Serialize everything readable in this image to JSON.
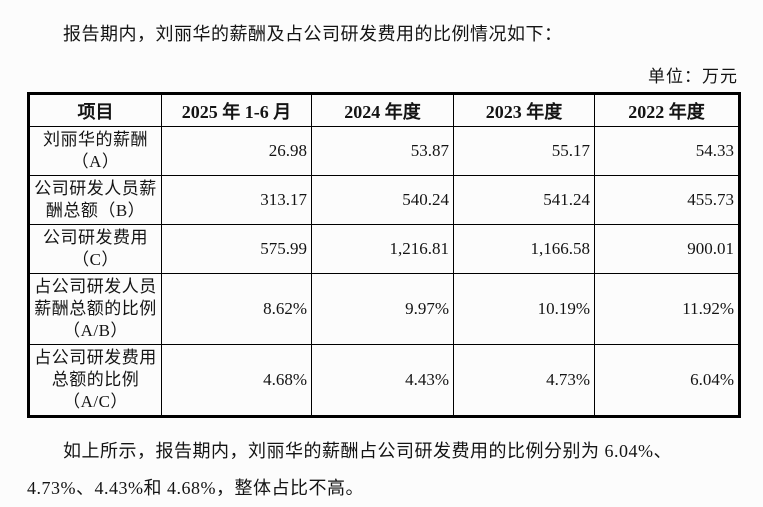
{
  "page": {
    "intro": "报告期内，刘丽华的薪酬及占公司研发费用的比例情况如下：",
    "unit_label": "单位：万元",
    "footer": "如上所示，报告期内，刘丽华的薪酬占公司研发费用的比例分别为 6.04%、4.73%、4.43%和 4.68%，整体占比不高。"
  },
  "table": {
    "headers": [
      "项目",
      "2025 年 1-6 月",
      "2024 年度",
      "2023 年度",
      "2022 年度"
    ],
    "rows": [
      {
        "label": "刘丽华的薪酬\n（A）",
        "values": [
          "26.98",
          "53.87",
          "55.17",
          "54.33"
        ]
      },
      {
        "label": "公司研发人员薪\n酬总额（B）",
        "values": [
          "313.17",
          "540.24",
          "541.24",
          "455.73"
        ]
      },
      {
        "label": "公司研发费用\n（C）",
        "values": [
          "575.99",
          "1,216.81",
          "1,166.58",
          "900.01"
        ]
      },
      {
        "label": "占公司研发人员\n薪酬总额的比例\n（A/B）",
        "values": [
          "8.62%",
          "9.97%",
          "10.19%",
          "11.92%"
        ]
      },
      {
        "label": "占公司研发费用\n总额的比例\n（A/C）",
        "values": [
          "4.68%",
          "4.43%",
          "4.73%",
          "6.04%"
        ]
      }
    ]
  }
}
